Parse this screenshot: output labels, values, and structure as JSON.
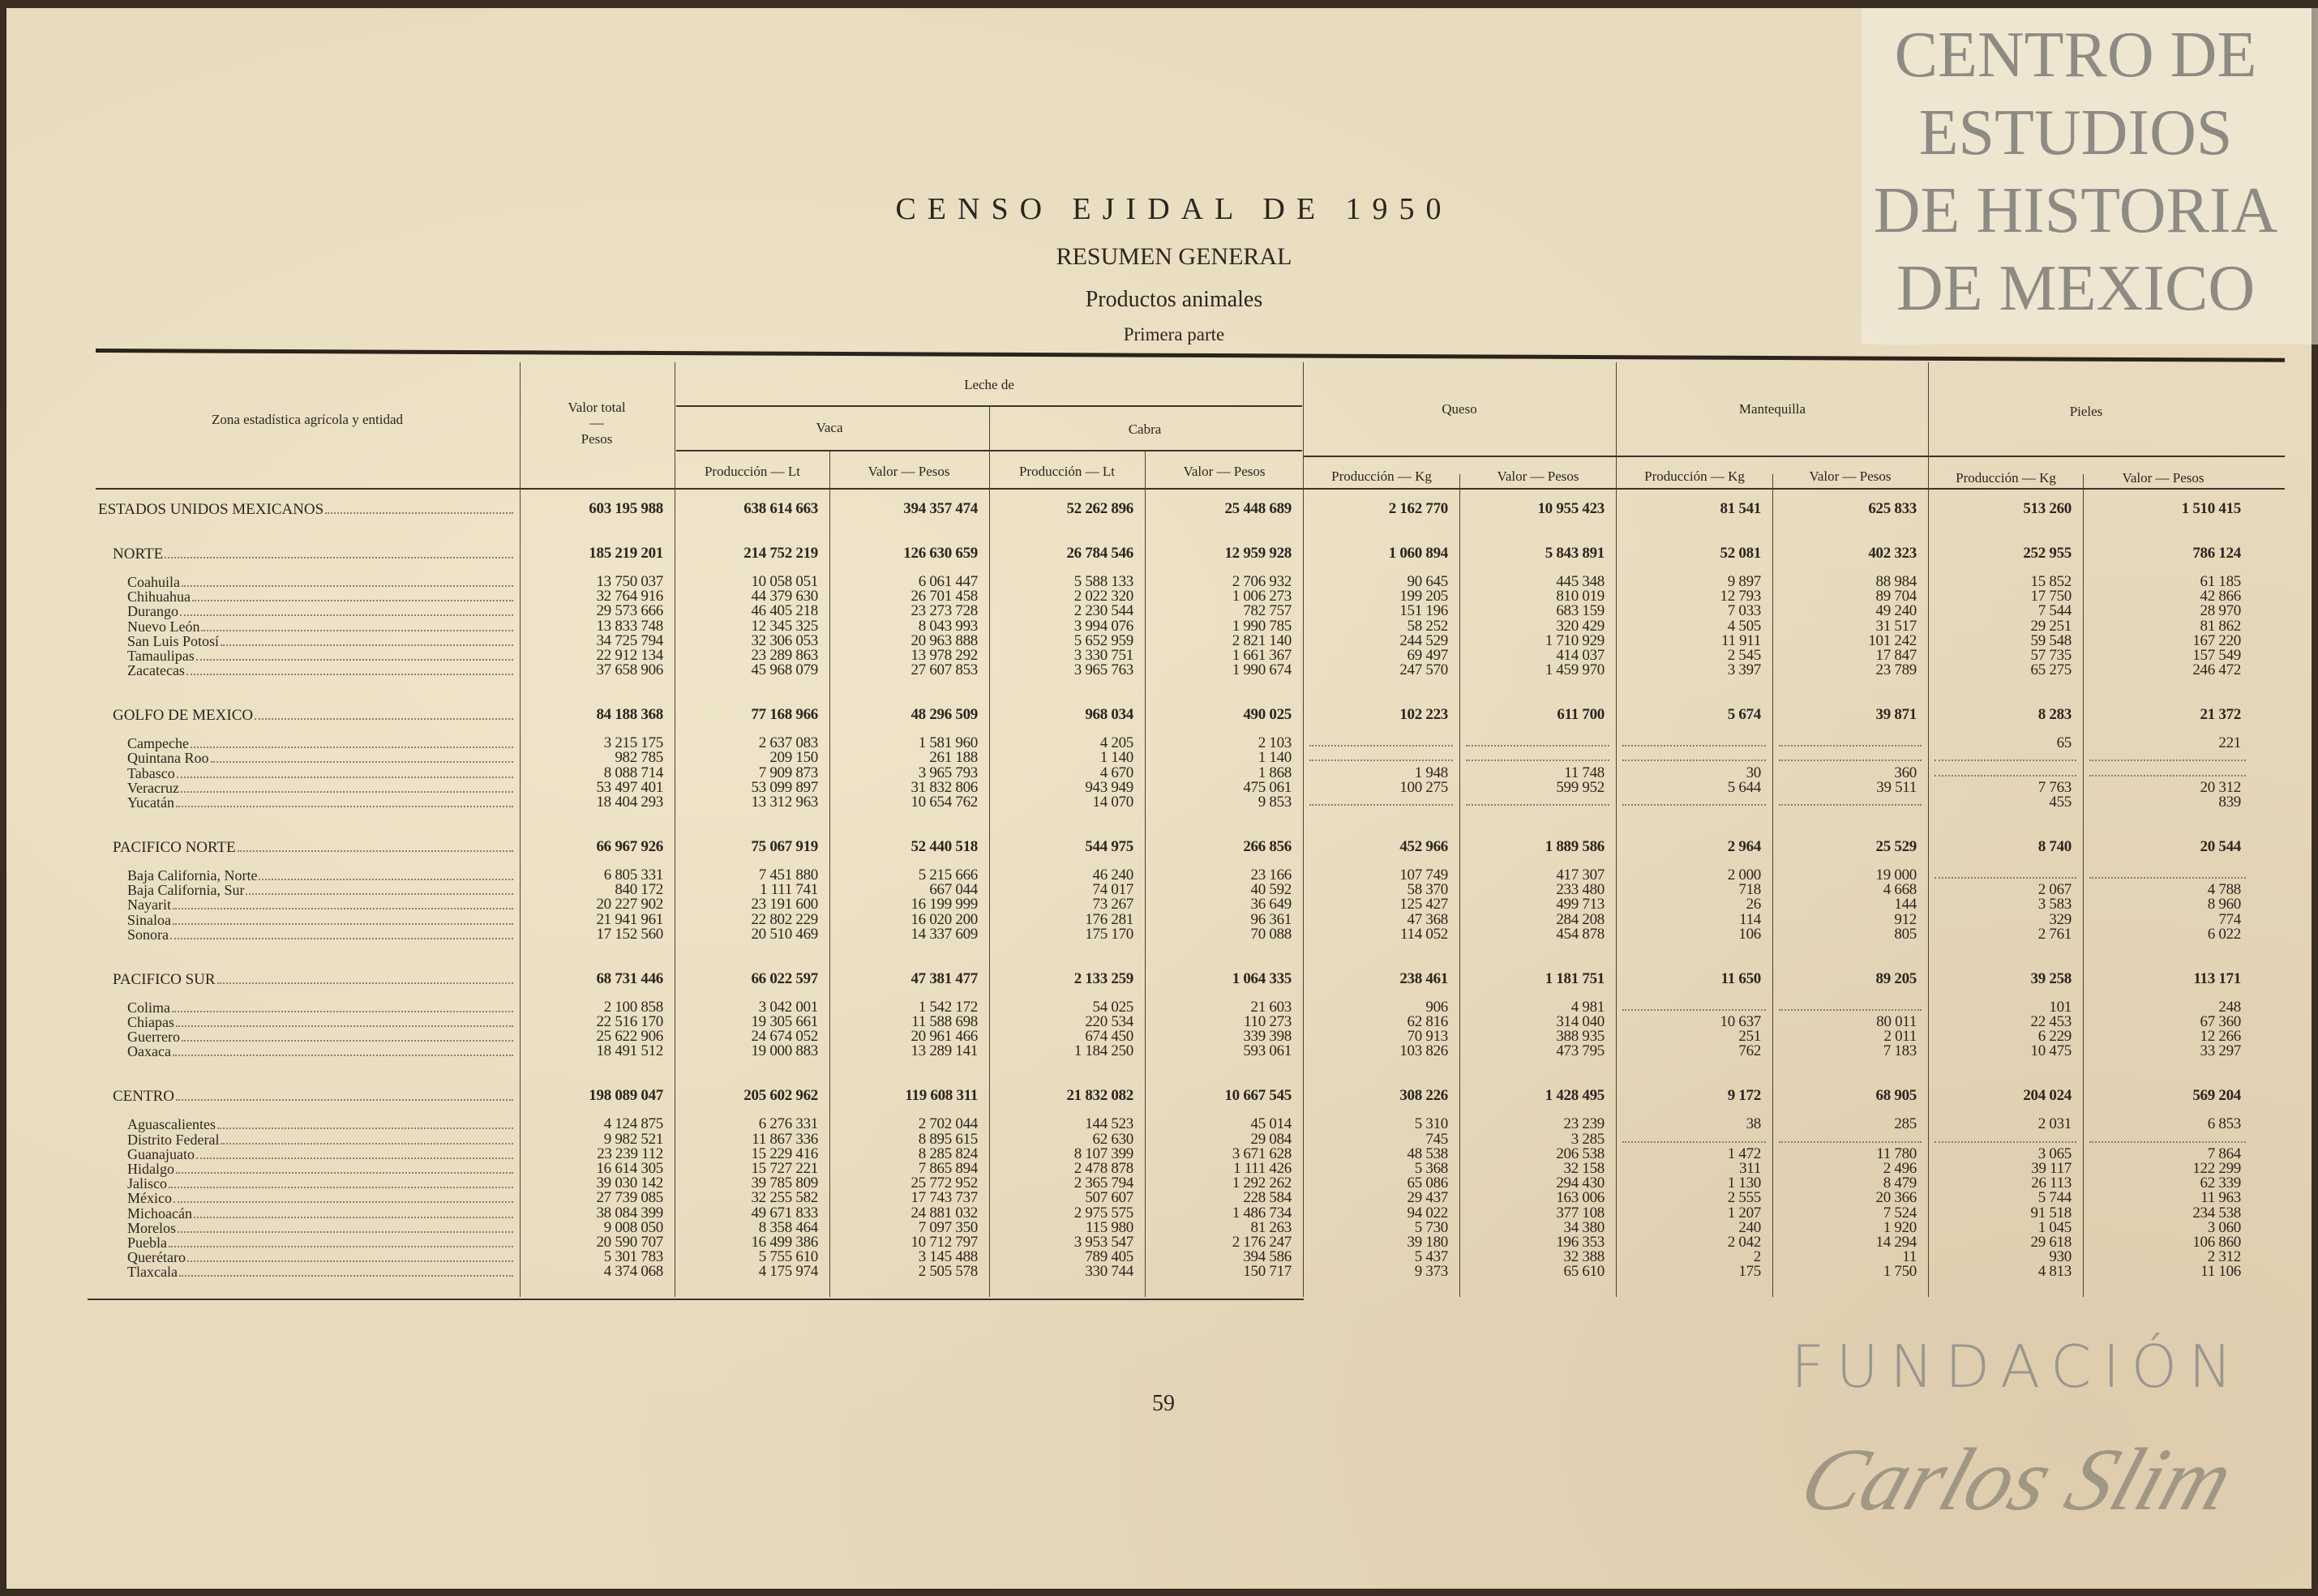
{
  "document": {
    "title": "CENSO EJIDAL DE 1950",
    "subtitle": "RESUMEN GENERAL",
    "section": "Productos animales",
    "part": "Primera parte",
    "page_number": "59"
  },
  "watermark": {
    "lines": [
      "CENTRO DE",
      "ESTUDIOS",
      "DE HISTORIA",
      "DE MEXICO"
    ],
    "foundation": "FUNDACIÓN",
    "signature": "Carlos Slim"
  },
  "table": {
    "headers": {
      "zone": "Zona estadística agrícola y entidad",
      "valor_total": "Valor total",
      "valor_total_dash": "—",
      "valor_total_unit": "Pesos",
      "leche": "Leche de",
      "vaca": "Vaca",
      "cabra": "Cabra",
      "queso": "Queso",
      "mantequilla": "Mantequilla",
      "pieles": "Pieles",
      "prod_lt": "Producción — Lt",
      "prod_kg": "Producción — Kg",
      "valor_pesos": "Valor — Pesos"
    },
    "rows": [
      {
        "type": "total",
        "name": "ESTADOS UNIDOS MEXICANOS",
        "values": [
          "603 195 988",
          "638 614 663",
          "394 357 474",
          "52 262 896",
          "25 448 689",
          "2 162 770",
          "10 955 423",
          "81 541",
          "625 833",
          "513 260",
          "1 510 415"
        ]
      },
      {
        "type": "zone",
        "name": "NORTE",
        "values": [
          "185 219 201",
          "214 752 219",
          "126 630 659",
          "26 784 546",
          "12 959 928",
          "1 060 894",
          "5 843 891",
          "52 081",
          "402 323",
          "252 955",
          "786 124"
        ]
      },
      {
        "type": "state",
        "name": "Coahuila",
        "values": [
          "13 750 037",
          "10 058 051",
          "6 061 447",
          "5 588 133",
          "2 706 932",
          "90 645",
          "445 348",
          "9 897",
          "88 984",
          "15 852",
          "61 185"
        ]
      },
      {
        "type": "state",
        "name": "Chihuahua",
        "values": [
          "32 764 916",
          "44 379 630",
          "26 701 458",
          "2 022 320",
          "1 006 273",
          "199 205",
          "810 019",
          "12 793",
          "89 704",
          "17 750",
          "42 866"
        ]
      },
      {
        "type": "state",
        "name": "Durango",
        "values": [
          "29 573 666",
          "46 405 218",
          "23 273 728",
          "2 230 544",
          "782 757",
          "151 196",
          "683 159",
          "7 033",
          "49 240",
          "7 544",
          "28 970"
        ]
      },
      {
        "type": "state",
        "name": "Nuevo León",
        "values": [
          "13 833 748",
          "12 345 325",
          "8 043 993",
          "3 994 076",
          "1 990 785",
          "58 252",
          "320 429",
          "4 505",
          "31 517",
          "29 251",
          "81 862"
        ]
      },
      {
        "type": "state",
        "name": "San Luis Potosí",
        "values": [
          "34 725 794",
          "32 306 053",
          "20 963 888",
          "5 652 959",
          "2 821 140",
          "244 529",
          "1 710 929",
          "11 911",
          "101 242",
          "59 548",
          "167 220"
        ]
      },
      {
        "type": "state",
        "name": "Tamaulipas",
        "values": [
          "22 912 134",
          "23 289 863",
          "13 978 292",
          "3 330 751",
          "1 661 367",
          "69 497",
          "414 037",
          "2 545",
          "17 847",
          "57 735",
          "157 549"
        ]
      },
      {
        "type": "state",
        "name": "Zacatecas",
        "values": [
          "37 658 906",
          "45 968 079",
          "27 607 853",
          "3 965 763",
          "1 990 674",
          "247 570",
          "1 459 970",
          "3 397",
          "23 789",
          "65 275",
          "246 472"
        ]
      },
      {
        "type": "zone",
        "name": "GOLFO DE MEXICO",
        "values": [
          "84 188 368",
          "77 168 966",
          "48 296 509",
          "968 034",
          "490 025",
          "102 223",
          "611 700",
          "5 674",
          "39 871",
          "8 283",
          "21 372"
        ]
      },
      {
        "type": "state",
        "name": "Campeche",
        "values": [
          "3 215 175",
          "2 637 083",
          "1 581 960",
          "4 205",
          "2 103",
          null,
          null,
          null,
          null,
          "65",
          "221"
        ]
      },
      {
        "type": "state",
        "name": "Quintana Roo",
        "values": [
          "982 785",
          "209 150",
          "261 188",
          "1 140",
          "1 140",
          null,
          null,
          null,
          null,
          null,
          null
        ]
      },
      {
        "type": "state",
        "name": "Tabasco",
        "values": [
          "8 088 714",
          "7 909 873",
          "3 965 793",
          "4 670",
          "1 868",
          "1 948",
          "11 748",
          "30",
          "360",
          null,
          null
        ]
      },
      {
        "type": "state",
        "name": "Veracruz",
        "values": [
          "53 497 401",
          "53 099 897",
          "31 832 806",
          "943 949",
          "475 061",
          "100 275",
          "599 952",
          "5 644",
          "39 511",
          "7 763",
          "20 312"
        ]
      },
      {
        "type": "state",
        "name": "Yucatán",
        "values": [
          "18 404 293",
          "13 312 963",
          "10 654 762",
          "14 070",
          "9 853",
          null,
          null,
          null,
          null,
          "455",
          "839"
        ]
      },
      {
        "type": "zone",
        "name": "PACIFICO NORTE",
        "values": [
          "66 967 926",
          "75 067 919",
          "52 440 518",
          "544 975",
          "266 856",
          "452 966",
          "1 889 586",
          "2 964",
          "25 529",
          "8 740",
          "20 544"
        ]
      },
      {
        "type": "state",
        "name": "Baja California, Norte",
        "values": [
          "6 805 331",
          "7 451 880",
          "5 215 666",
          "46 240",
          "23 166",
          "107 749",
          "417 307",
          "2 000",
          "19 000",
          null,
          null
        ]
      },
      {
        "type": "state",
        "name": "Baja California, Sur",
        "values": [
          "840 172",
          "1 111 741",
          "667 044",
          "74 017",
          "40 592",
          "58 370",
          "233 480",
          "718",
          "4 668",
          "2 067",
          "4 788"
        ]
      },
      {
        "type": "state",
        "name": "Nayarit",
        "values": [
          "20 227 902",
          "23 191 600",
          "16 199 999",
          "73 267",
          "36 649",
          "125 427",
          "499 713",
          "26",
          "144",
          "3 583",
          "8 960"
        ]
      },
      {
        "type": "state",
        "name": "Sinaloa",
        "values": [
          "21 941 961",
          "22 802 229",
          "16 020 200",
          "176 281",
          "96 361",
          "47 368",
          "284 208",
          "114",
          "912",
          "329",
          "774"
        ]
      },
      {
        "type": "state",
        "name": "Sonora",
        "values": [
          "17 152 560",
          "20 510 469",
          "14 337 609",
          "175 170",
          "70 088",
          "114 052",
          "454 878",
          "106",
          "805",
          "2 761",
          "6 022"
        ]
      },
      {
        "type": "zone",
        "name": "PACIFICO SUR",
        "values": [
          "68 731 446",
          "66 022 597",
          "47 381 477",
          "2 133 259",
          "1 064 335",
          "238 461",
          "1 181 751",
          "11 650",
          "89 205",
          "39 258",
          "113 171"
        ]
      },
      {
        "type": "state",
        "name": "Colima",
        "values": [
          "2 100 858",
          "3 042 001",
          "1 542 172",
          "54 025",
          "21 603",
          "906",
          "4 981",
          null,
          null,
          "101",
          "248"
        ]
      },
      {
        "type": "state",
        "name": "Chiapas",
        "values": [
          "22 516 170",
          "19 305 661",
          "11 588 698",
          "220 534",
          "110 273",
          "62 816",
          "314 040",
          "10 637",
          "80 011",
          "22 453",
          "67 360"
        ]
      },
      {
        "type": "state",
        "name": "Guerrero",
        "values": [
          "25 622 906",
          "24 674 052",
          "20 961 466",
          "674 450",
          "339 398",
          "70 913",
          "388 935",
          "251",
          "2 011",
          "6 229",
          "12 266"
        ]
      },
      {
        "type": "state",
        "name": "Oaxaca",
        "values": [
          "18 491 512",
          "19 000 883",
          "13 289 141",
          "1 184 250",
          "593 061",
          "103 826",
          "473 795",
          "762",
          "7 183",
          "10 475",
          "33 297"
        ]
      },
      {
        "type": "zone",
        "name": "CENTRO",
        "values": [
          "198 089 047",
          "205 602 962",
          "119 608 311",
          "21 832 082",
          "10 667 545",
          "308 226",
          "1 428 495",
          "9 172",
          "68 905",
          "204 024",
          "569 204"
        ]
      },
      {
        "type": "state",
        "name": "Aguascalientes",
        "values": [
          "4 124 875",
          "6 276 331",
          "2 702 044",
          "144 523",
          "45 014",
          "5 310",
          "23 239",
          "38",
          "285",
          "2 031",
          "6 853"
        ]
      },
      {
        "type": "state",
        "name": "Distrito Federal",
        "values": [
          "9 982 521",
          "11 867 336",
          "8 895 615",
          "62 630",
          "29 084",
          "745",
          "3 285",
          null,
          null,
          null,
          null
        ]
      },
      {
        "type": "state",
        "name": "Guanajuato",
        "values": [
          "23 239 112",
          "15 229 416",
          "8 285 824",
          "8 107 399",
          "3 671 628",
          "48 538",
          "206 538",
          "1 472",
          "11 780",
          "3 065",
          "7 864"
        ]
      },
      {
        "type": "state",
        "name": "Hidalgo",
        "values": [
          "16 614 305",
          "15 727 221",
          "7 865 894",
          "2 478 878",
          "1 111 426",
          "5 368",
          "32 158",
          "311",
          "2 496",
          "39 117",
          "122 299"
        ]
      },
      {
        "type": "state",
        "name": "Jalisco",
        "values": [
          "39 030 142",
          "39 785 809",
          "25 772 952",
          "2 365 794",
          "1 292 262",
          "65 086",
          "294 430",
          "1 130",
          "8 479",
          "26 113",
          "62 339"
        ]
      },
      {
        "type": "state",
        "name": "México",
        "values": [
          "27 739 085",
          "32 255 582",
          "17 743 737",
          "507 607",
          "228 584",
          "29 437",
          "163 006",
          "2 555",
          "20 366",
          "5 744",
          "11 963"
        ]
      },
      {
        "type": "state",
        "name": "Michoacán",
        "values": [
          "38 084 399",
          "49 671 833",
          "24 881 032",
          "2 975 575",
          "1 486 734",
          "94 022",
          "377 108",
          "1 207",
          "7 524",
          "91 518",
          "234 538"
        ]
      },
      {
        "type": "state",
        "name": "Morelos",
        "values": [
          "9 008 050",
          "8 358 464",
          "7 097 350",
          "115 980",
          "81 263",
          "5 730",
          "34 380",
          "240",
          "1 920",
          "1 045",
          "3 060"
        ]
      },
      {
        "type": "state",
        "name": "Puebla",
        "values": [
          "20 590 707",
          "16 499 386",
          "10 712 797",
          "3 953 547",
          "2 176 247",
          "39 180",
          "196 353",
          "2 042",
          "14 294",
          "29 618",
          "106 860"
        ]
      },
      {
        "type": "state",
        "name": "Querétaro",
        "values": [
          "5 301 783",
          "5 755 610",
          "3 145 488",
          "789 405",
          "394 586",
          "5 437",
          "32 388",
          "2",
          "11",
          "930",
          "2 312"
        ]
      },
      {
        "type": "state",
        "name": "Tlaxcala",
        "values": [
          "4 374 068",
          "4 175 974",
          "2 505 578",
          "330 744",
          "150 717",
          "9 373",
          "65 610",
          "175",
          "1 750",
          "4 813",
          "11 106"
        ]
      }
    ]
  }
}
